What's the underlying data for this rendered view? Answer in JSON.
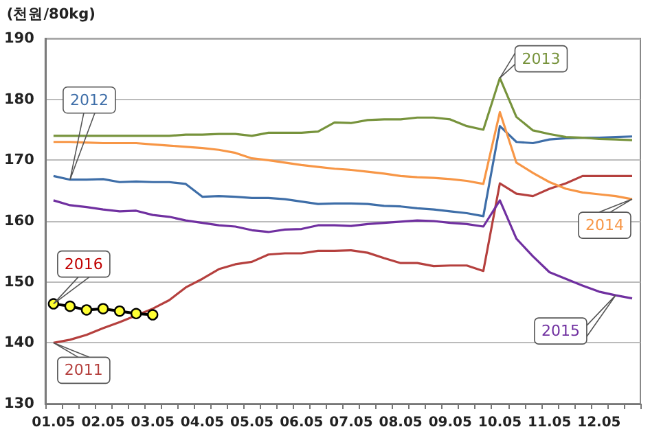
{
  "chart_data": {
    "type": "line",
    "ylabel": "(천원/80kg)",
    "categories": [
      "01.05",
      null,
      null,
      "02.05",
      null,
      null,
      "03.05",
      null,
      null,
      "04.05",
      null,
      null,
      "05.05",
      null,
      null,
      "06.05",
      null,
      null,
      "07.05",
      null,
      null,
      "08.05",
      null,
      null,
      "09.05",
      null,
      null,
      "10.05",
      null,
      null,
      "11.05",
      null,
      null,
      "12.05",
      null,
      null
    ],
    "ylim": [
      130,
      190
    ],
    "yticks": [
      130,
      140,
      150,
      160,
      170,
      180,
      190
    ],
    "grid": "y",
    "legend": false,
    "marker": "none",
    "series": [
      {
        "name": "2011",
        "color": "#b5403e",
        "values": [
          140,
          140.5,
          141.3,
          142.4,
          143.4,
          144.5,
          145.6,
          147,
          149.1,
          150.5,
          152.1,
          152.9,
          153.3,
          154.5,
          154.7,
          154.7,
          155.1,
          155.1,
          155.2,
          154.8,
          153.9,
          153.1,
          153.1,
          152.6,
          152.7,
          152.7,
          151.8,
          166.2,
          164.5,
          164.1,
          165.3,
          166.2,
          167.4,
          167.4,
          167.4,
          167.4
        ]
      },
      {
        "name": "2012",
        "color": "#3e6ea8",
        "values": [
          167.4,
          166.8,
          166.8,
          166.9,
          166.4,
          166.5,
          166.4,
          166.4,
          166.1,
          164,
          164.1,
          164,
          163.8,
          163.8,
          163.6,
          163.2,
          162.8,
          162.9,
          162.9,
          162.8,
          162.5,
          162.4,
          162.1,
          161.9,
          161.6,
          161.3,
          160.8,
          175.6,
          173,
          172.8,
          173.4,
          173.6,
          173.7,
          173.7,
          173.8,
          173.9
        ]
      },
      {
        "name": "2013",
        "color": "#77933c",
        "values": [
          174,
          174,
          174,
          174,
          174,
          174,
          174,
          174,
          174.2,
          174.2,
          174.3,
          174.3,
          174,
          174.5,
          174.5,
          174.5,
          174.7,
          176.2,
          176.1,
          176.6,
          176.7,
          176.7,
          177,
          177,
          176.7,
          175.6,
          175,
          183.5,
          177.1,
          174.9,
          174.3,
          173.8,
          173.7,
          173.5,
          173.4,
          173.3
        ]
      },
      {
        "name": "2014",
        "color": "#f79646",
        "values": [
          173,
          173,
          172.9,
          172.8,
          172.8,
          172.8,
          172.6,
          172.4,
          172.2,
          172,
          171.7,
          171.2,
          170.3,
          170,
          169.6,
          169.2,
          168.9,
          168.6,
          168.4,
          168.1,
          167.8,
          167.4,
          167.2,
          167.1,
          166.9,
          166.6,
          166.1,
          177.9,
          169.6,
          167.9,
          166.4,
          165.3,
          164.7,
          164.4,
          164.1,
          163.6
        ]
      },
      {
        "name": "2015",
        "color": "#7030a0",
        "values": [
          163.4,
          162.6,
          162.3,
          161.9,
          161.6,
          161.7,
          161,
          160.7,
          160.1,
          159.7,
          159.3,
          159.1,
          158.5,
          158.2,
          158.6,
          158.7,
          159.3,
          159.3,
          159.2,
          159.5,
          159.7,
          159.9,
          160.1,
          160,
          159.7,
          159.5,
          159.1,
          163.4,
          157.1,
          154.2,
          151.6,
          150.5,
          149.4,
          148.4,
          147.8,
          147.3
        ]
      },
      {
        "name": "2016",
        "color": "#000000",
        "marker": "circle",
        "values": [
          146.4,
          146,
          145.4,
          145.6,
          145.2,
          144.8,
          144.6,
          null,
          null,
          null,
          null,
          null,
          null,
          null,
          null,
          null,
          null,
          null,
          null,
          null,
          null,
          null,
          null,
          null,
          null,
          null,
          null,
          null,
          null,
          null,
          null,
          null,
          null,
          null,
          null,
          null
        ]
      }
    ]
  }
}
